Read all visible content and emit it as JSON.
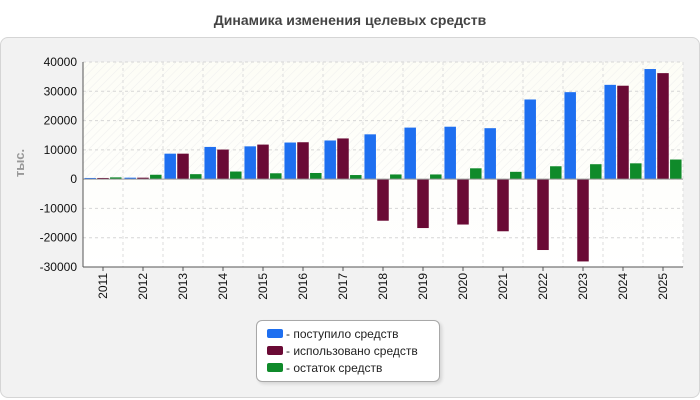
{
  "chart_data": {
    "type": "bar",
    "title": "Динамика изменения целевых средств",
    "ylabel": "тыс.",
    "xlabel": "",
    "ylim": [
      -30000,
      40000
    ],
    "yticks": [
      40000,
      30000,
      20000,
      10000,
      0,
      -10000,
      -20000,
      -30000
    ],
    "grid": true,
    "legend_position": "bottom-center",
    "categories": [
      "2011",
      "2012",
      "2013",
      "2014",
      "2015",
      "2016",
      "2017",
      "2018",
      "2019",
      "2020",
      "2021",
      "2022",
      "2023",
      "2024",
      "2025"
    ],
    "series": [
      {
        "name": "поступило средств",
        "color": "#1e6ff0",
        "values": [
          400,
          500,
          8700,
          11000,
          11200,
          12500,
          13200,
          15300,
          17600,
          17900,
          17400,
          27200,
          29700,
          32200,
          37600
        ]
      },
      {
        "name": "использовано средств",
        "color": "#6a0a35",
        "values": [
          400,
          500,
          8700,
          10100,
          11800,
          12600,
          13900,
          -14200,
          -16700,
          -15500,
          -17800,
          -24200,
          -28100,
          31900,
          36200
        ]
      },
      {
        "name": "остаток средств",
        "color": "#0f8a2a",
        "values": [
          600,
          1500,
          1700,
          2600,
          2000,
          2100,
          1400,
          1600,
          1600,
          3700,
          2500,
          4400,
          5100,
          5400,
          6700
        ]
      }
    ]
  }
}
